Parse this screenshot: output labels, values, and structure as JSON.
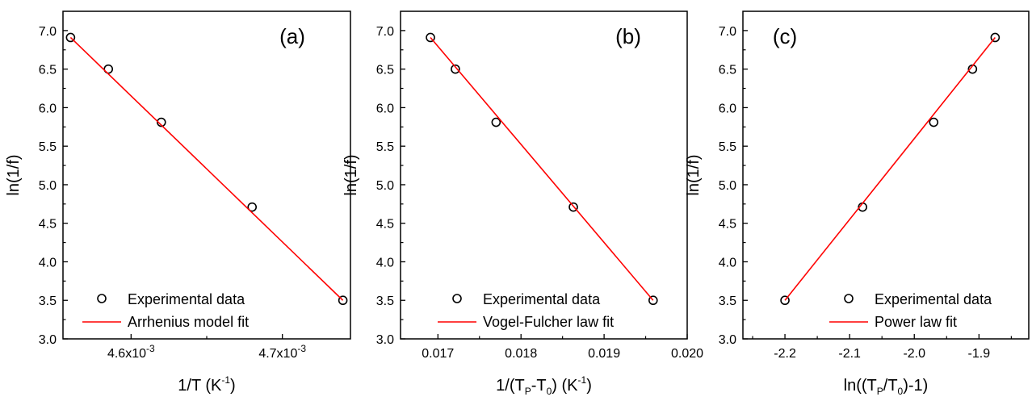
{
  "colors": {
    "fit": "#ff0000",
    "marker": "#000000",
    "axis": "#000000"
  },
  "chart_data": [
    {
      "type": "scatter",
      "panel_label": "(a)",
      "xlabel_main": "1/T (K",
      "xlabel_sup": "-1",
      "xlabel_end": ")",
      "ylabel": "ln(1/f)",
      "xlim": [
        0.004555,
        0.004745
      ],
      "ylim": [
        3.0,
        7.25
      ],
      "yticks": [
        "3.0",
        "3.5",
        "4.0",
        "4.5",
        "5.0",
        "5.5",
        "6.0",
        "6.5",
        "7.0"
      ],
      "xticks": [
        {
          "value": 0.0046,
          "mant": "4.6x10",
          "exp": "-3"
        },
        {
          "value": 0.0047,
          "mant": "4.7x10",
          "exp": "-3"
        }
      ],
      "series": [
        {
          "name": "Experimental data",
          "kind": "markers",
          "x": [
            0.00456,
            0.004585,
            0.00462,
            0.00468,
            0.00474
          ],
          "y": [
            6.91,
            6.5,
            5.81,
            4.71,
            3.5
          ]
        },
        {
          "name": "Arrhenius model fit",
          "kind": "line",
          "x": [
            0.00456,
            0.00474
          ],
          "y": [
            6.91,
            3.5
          ]
        }
      ],
      "legend_position": "bottom-left"
    },
    {
      "type": "scatter",
      "panel_label": "(b)",
      "xlabel_main": "1/(T",
      "xlabel_sub1": "P",
      "xlabel_mid": "-T",
      "xlabel_sub2": "0",
      "xlabel_mid2": ") (K",
      "xlabel_sup": "-1",
      "xlabel_end": ")",
      "ylabel": "ln(1/f)",
      "xlim": [
        0.01655,
        0.02
      ],
      "ylim": [
        3.0,
        7.25
      ],
      "yticks": [
        "3.0",
        "3.5",
        "4.0",
        "4.5",
        "5.0",
        "5.5",
        "6.0",
        "6.5",
        "7.0"
      ],
      "xticks": [
        {
          "value": 0.017,
          "label": "0.017"
        },
        {
          "value": 0.018,
          "label": "0.018"
        },
        {
          "value": 0.019,
          "label": "0.019"
        },
        {
          "value": 0.02,
          "label": "0.020"
        }
      ],
      "series": [
        {
          "name": "Experimental data",
          "kind": "markers",
          "x": [
            0.01691,
            0.01721,
            0.0177,
            0.01863,
            0.01959
          ],
          "y": [
            6.91,
            6.5,
            5.81,
            4.71,
            3.5
          ]
        },
        {
          "name": "Vogel-Fulcher law fit",
          "kind": "line",
          "x": [
            0.01691,
            0.01959
          ],
          "y": [
            6.91,
            3.5
          ]
        }
      ],
      "legend_position": "bottom-left"
    },
    {
      "type": "scatter",
      "panel_label": "(c)",
      "xlabel_main": "ln((T",
      "xlabel_sub1": "P",
      "xlabel_mid": "/T",
      "xlabel_sub2": "0",
      "xlabel_end": ")-1)",
      "ylabel": "ln(1/f)",
      "xlim": [
        -2.265,
        -1.823
      ],
      "ylim": [
        3.0,
        7.25
      ],
      "yticks": [
        "3.0",
        "3.5",
        "4.0",
        "4.5",
        "5.0",
        "5.5",
        "6.0",
        "6.5",
        "7.0"
      ],
      "xticks": [
        {
          "value": -2.2,
          "label": "-2.2"
        },
        {
          "value": -2.1,
          "label": "-2.1"
        },
        {
          "value": -2.0,
          "label": "-2.0"
        },
        {
          "value": -1.9,
          "label": "-1.9"
        }
      ],
      "series": [
        {
          "name": "Experimental data",
          "kind": "markers",
          "x": [
            -2.2,
            -2.08,
            -1.97,
            -1.91,
            -1.875
          ],
          "y": [
            3.5,
            4.71,
            5.81,
            6.5,
            6.91
          ]
        },
        {
          "name": "Power law fit",
          "kind": "line",
          "x": [
            -2.2,
            -1.875
          ],
          "y": [
            3.5,
            6.91
          ]
        }
      ],
      "legend_position": "bottom-right"
    }
  ]
}
